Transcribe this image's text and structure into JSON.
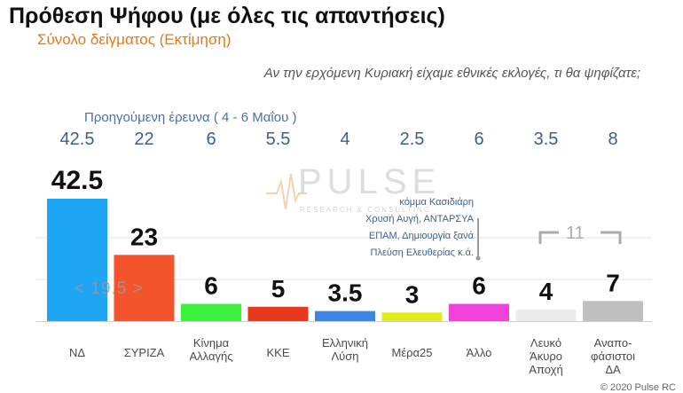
{
  "title": "Πρόθεση Ψήφου (με όλες τις απαντήσεις)",
  "subtitle": "Σύνολο δείγματος   (Εκτίμηση)",
  "question": "Αν την ερχόμενη Κυριακή είχαμε εθνικές εκλογές, τι θα ψηφίζατε;",
  "previous_survey_label": "Προηγούμενη έρευνα   ( 4 - 6 Μαΐου )",
  "watermark": {
    "main": "PULSE",
    "sub": "RESEARCH & CONSULTING"
  },
  "other_note": [
    "κόμμα Κασιδιάρη",
    "Χρυσή Αυγή, ΑΝΤΑΡΣΥΑ",
    "ΕΠΑΜ, Δημιουργία ξανά",
    "Πλεύση Ελευθερίας  κ.ά."
  ],
  "blank_undecided_total": "11",
  "nd_lead": "< 19.5 >",
  "copyright": "© 2020 Pulse RC",
  "chart_data": {
    "type": "bar",
    "categories": [
      [
        "ΝΔ"
      ],
      [
        "ΣΥΡΙΖΑ"
      ],
      [
        "Κίνημα",
        "Αλλαγής"
      ],
      [
        "ΚΚΕ"
      ],
      [
        "Ελληνική",
        "Λύση"
      ],
      [
        "Μέρα25"
      ],
      [
        "Άλλο"
      ],
      [
        "Λευκό",
        "Άκυρο",
        "Αποχή"
      ],
      [
        "Αναπο-",
        "φάσιστοι",
        "ΔΑ"
      ]
    ],
    "values": [
      42.5,
      23,
      6,
      5,
      3.5,
      3,
      6,
      4,
      7
    ],
    "value_labels": [
      "42.5",
      "23",
      "6",
      "5",
      "3.5",
      "3",
      "6",
      "4",
      "7"
    ],
    "previous_values": [
      "42.5",
      "22",
      "6",
      "5.5",
      "4",
      "2.5",
      "6",
      "3.5",
      "8"
    ],
    "colors": [
      "#1ea6f5",
      "#f4542b",
      "#3df23d",
      "#e8391e",
      "#3b86e4",
      "#e1ec1a",
      "#f341dd",
      "#ececec",
      "#bfbfbf"
    ],
    "ylim": [
      0,
      42.5
    ],
    "grid": true
  }
}
